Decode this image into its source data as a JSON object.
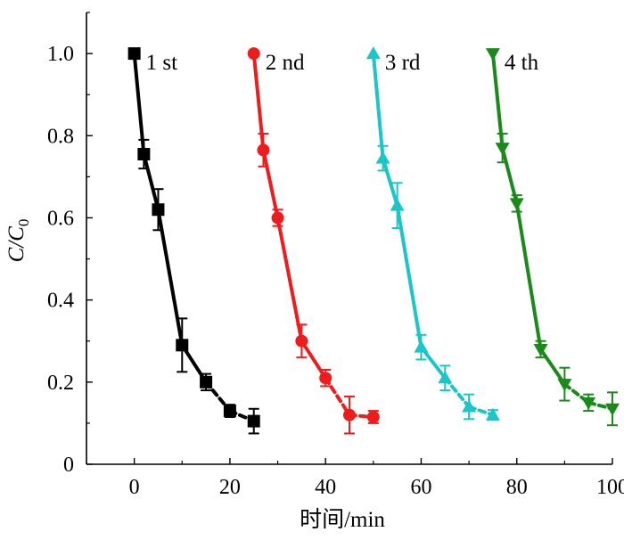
{
  "chart_data": {
    "type": "line",
    "title": "",
    "xlabel": "时间/min",
    "ylabel": {
      "main": "C/C",
      "sub": "0"
    },
    "xlim": [
      -10,
      100
    ],
    "ylim": [
      0,
      1.1
    ],
    "x_ticks": [
      0,
      20,
      40,
      60,
      80,
      100
    ],
    "x_tick_labels": [
      "0",
      "20",
      "40",
      "60",
      "80",
      "100"
    ],
    "y_ticks": [
      0,
      0.2,
      0.4,
      0.6,
      0.8,
      1.0
    ],
    "y_tick_labels": [
      "0",
      "0.2",
      "0.4",
      "0.6",
      "0.8",
      "1.0"
    ],
    "legend_placement": "inline-top, next to each series start",
    "series": [
      {
        "name": "1 st",
        "color": "#000000",
        "marker": "square",
        "x": [
          0,
          2,
          5,
          10,
          15,
          20,
          25
        ],
        "y": [
          1.0,
          0.755,
          0.62,
          0.29,
          0.2,
          0.13,
          0.105
        ],
        "err": [
          0.0,
          0.035,
          0.05,
          0.065,
          0.02,
          0.015,
          0.03
        ]
      },
      {
        "name": "2 nd",
        "color": "#ee1c1c",
        "marker": "circle",
        "x": [
          25,
          27,
          30,
          35,
          40,
          45,
          50
        ],
        "y": [
          1.0,
          0.765,
          0.6,
          0.3,
          0.21,
          0.12,
          0.115
        ],
        "err": [
          0.0,
          0.04,
          0.02,
          0.04,
          0.02,
          0.045,
          0.015
        ]
      },
      {
        "name": "3 rd",
        "color": "#1ac6c8",
        "marker": "triangle-up",
        "x": [
          50,
          52,
          55,
          60,
          65,
          70,
          75
        ],
        "y": [
          1.0,
          0.745,
          0.63,
          0.285,
          0.21,
          0.14,
          0.12
        ],
        "err": [
          0.0,
          0.03,
          0.055,
          0.03,
          0.03,
          0.03,
          0.012
        ]
      },
      {
        "name": "4 th",
        "color": "#1a8a1a",
        "marker": "triangle-down",
        "x": [
          75,
          77,
          80,
          85,
          90,
          95,
          100
        ],
        "y": [
          1.0,
          0.77,
          0.635,
          0.28,
          0.195,
          0.15,
          0.135
        ],
        "err": [
          0.0,
          0.035,
          0.02,
          0.02,
          0.04,
          0.02,
          0.04
        ]
      }
    ]
  }
}
